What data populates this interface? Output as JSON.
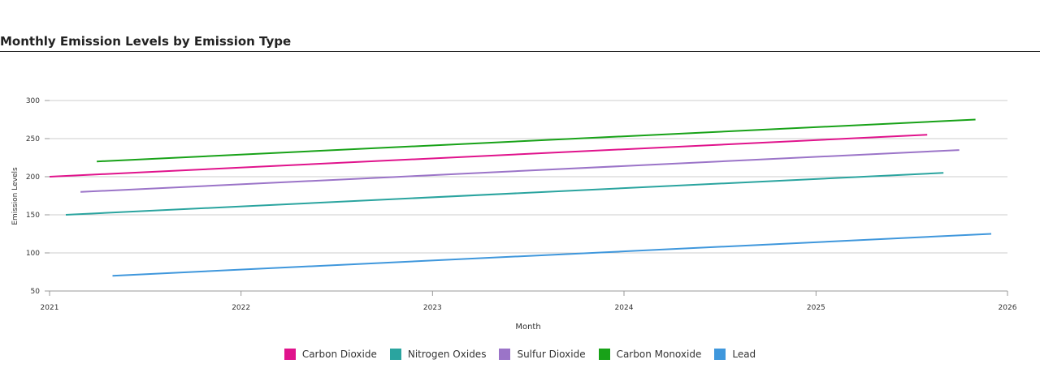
{
  "page": {
    "title": "Monthly Emission Levels by Emission Type"
  },
  "chart_data": {
    "type": "line",
    "title": "Monthly Emission Levels by Emission Type",
    "xlabel": "Month",
    "ylabel": "Emission Levels",
    "x_ticks": [
      "2021",
      "2022",
      "2023",
      "2024",
      "2025",
      "2026"
    ],
    "y_ticks": [
      50,
      100,
      150,
      200,
      250,
      300
    ],
    "xlim": [
      "2021-01-01",
      "2026-01-01"
    ],
    "ylim": [
      50,
      300
    ],
    "grid": "horizontal",
    "legend_position": "bottom",
    "series": [
      {
        "name": "Carbon Dioxide",
        "color": "#e0138c",
        "points": [
          [
            "2021-01-01",
            200
          ],
          [
            "2025-08-01",
            255
          ]
        ]
      },
      {
        "name": "Nitrogen Oxides",
        "color": "#2aa49f",
        "points": [
          [
            "2021-02-01",
            150
          ],
          [
            "2025-09-01",
            205
          ]
        ]
      },
      {
        "name": "Sulfur Dioxide",
        "color": "#9b74c8",
        "points": [
          [
            "2021-03-01",
            180
          ],
          [
            "2025-10-01",
            235
          ]
        ]
      },
      {
        "name": "Carbon Monoxide",
        "color": "#18a218",
        "points": [
          [
            "2021-04-01",
            220
          ],
          [
            "2025-11-01",
            275
          ]
        ]
      },
      {
        "name": "Lead",
        "color": "#3f97dc",
        "points": [
          [
            "2021-05-01",
            70
          ],
          [
            "2025-12-01",
            125
          ]
        ]
      }
    ]
  }
}
